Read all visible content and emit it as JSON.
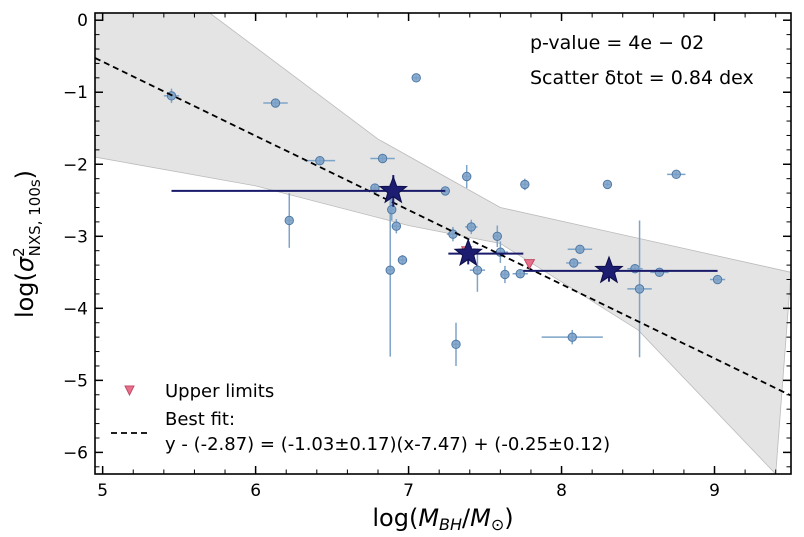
{
  "chart_data": {
    "type": "scatter",
    "xlabel": "log(M_BH/M_⊙)",
    "ylabel": "log(σ²_NXS,100s)",
    "xlim": [
      4.95,
      9.5
    ],
    "ylim": [
      -6.3,
      0.1
    ],
    "xticks": [
      5,
      6,
      7,
      8,
      9
    ],
    "yticks": [
      0,
      -1,
      -2,
      -3,
      -4,
      -5,
      -6
    ],
    "xtick_labels": [
      "5",
      "6",
      "7",
      "8",
      "9"
    ],
    "ytick_labels": [
      "0",
      "−1",
      "−2",
      "−3",
      "−4",
      "−5",
      "−6"
    ],
    "annotations": {
      "pvalue": "p-value = 4e − 02",
      "scatter": "Scatter δtot = 0.84 dex"
    },
    "legend": {
      "upper_limits": "Upper limits",
      "best_fit_title": "Best fit:",
      "best_fit_eq": "y - (-2.87) = (-1.03±0.17)(x-7.47) + (-0.25±0.12)"
    },
    "fit": {
      "x0": 7.47,
      "y0": -2.87,
      "slope": -1.03,
      "intercept": -0.25
    },
    "band": {
      "upper": [
        [
          4.95,
          1.2
        ],
        [
          5.7,
          0.1
        ],
        [
          6.8,
          -1.65
        ],
        [
          7.6,
          -2.6
        ],
        [
          9.5,
          -3.5
        ]
      ],
      "lower": [
        [
          4.95,
          -1.9
        ],
        [
          6.0,
          -2.3
        ],
        [
          7.0,
          -2.85
        ],
        [
          7.6,
          -3.1
        ],
        [
          8.5,
          -4.3
        ],
        [
          9.4,
          -6.3
        ]
      ]
    },
    "points": [
      {
        "x": 5.45,
        "y": -1.05,
        "xerr": 0.05,
        "yerr": 0.1
      },
      {
        "x": 6.13,
        "y": -1.15,
        "xerr": 0.08,
        "yerr": 0.05
      },
      {
        "x": 6.22,
        "y": -2.78,
        "xerr": 0.02,
        "yerr": 0.38
      },
      {
        "x": 6.42,
        "y": -1.95,
        "xerr": 0.1,
        "yerr": 0.05
      },
      {
        "x": 6.78,
        "y": -2.33,
        "xerr": 0.02,
        "yerr": 0.05
      },
      {
        "x": 6.83,
        "y": -1.92,
        "xerr": 0.08,
        "yerr": 0.05
      },
      {
        "x": 6.88,
        "y": -3.47,
        "xerr": 0.02,
        "yerr": 1.2
      },
      {
        "x": 6.89,
        "y": -2.63,
        "xerr": 0.02,
        "yerr": 0.15
      },
      {
        "x": 6.92,
        "y": -2.86,
        "xerr": 0.03,
        "yerr": 0.1
      },
      {
        "x": 6.96,
        "y": -3.33,
        "xerr": 0.03,
        "yerr": 0.07
      },
      {
        "x": 7.05,
        "y": -0.8,
        "xerr": 0.02,
        "yerr": 0.03
      },
      {
        "x": 7.24,
        "y": -2.37,
        "xerr": 0.02,
        "yerr": 0.03
      },
      {
        "x": 7.29,
        "y": -2.97,
        "xerr": 0.04,
        "yerr": 0.1
      },
      {
        "x": 7.31,
        "y": -4.5,
        "xerr": 0.02,
        "yerr": 0.3
      },
      {
        "x": 7.38,
        "y": -2.17,
        "xerr": 0.02,
        "yerr": 0.16
      },
      {
        "x": 7.41,
        "y": -2.87,
        "xerr": 0.04,
        "yerr": 0.1
      },
      {
        "x": 7.45,
        "y": -3.47,
        "xerr": 0.05,
        "yerr": 0.3
      },
      {
        "x": 7.58,
        "y": -3.0,
        "xerr": 0.02,
        "yerr": 0.15
      },
      {
        "x": 7.6,
        "y": -3.22,
        "xerr": 0.05,
        "yerr": 0.15
      },
      {
        "x": 7.63,
        "y": -3.53,
        "xerr": 0.03,
        "yerr": 0.12
      },
      {
        "x": 7.73,
        "y": -3.52,
        "xerr": 0.05,
        "yerr": 0.05
      },
      {
        "x": 7.76,
        "y": -2.28,
        "xerr": 0.02,
        "yerr": 0.08
      },
      {
        "x": 8.07,
        "y": -4.4,
        "xerr": 0.2,
        "yerr": 0.1
      },
      {
        "x": 8.08,
        "y": -3.37,
        "xerr": 0.05,
        "yerr": 0.05
      },
      {
        "x": 8.12,
        "y": -3.18,
        "xerr": 0.08,
        "yerr": 0.05
      },
      {
        "x": 8.3,
        "y": -2.28,
        "xerr": 0.02,
        "yerr": 0.03
      },
      {
        "x": 8.48,
        "y": -3.45,
        "xerr": 0.05,
        "yerr": 0.05
      },
      {
        "x": 8.51,
        "y": -3.73,
        "xerr": 0.08,
        "yerr": 0.95
      },
      {
        "x": 8.64,
        "y": -3.5,
        "xerr": 0.06,
        "yerr": 0.06
      },
      {
        "x": 8.75,
        "y": -2.14,
        "xerr": 0.06,
        "yerr": 0.03
      },
      {
        "x": 9.02,
        "y": -3.6,
        "xerr": 0.05,
        "yerr": 0.03
      }
    ],
    "stars": [
      {
        "x": 6.9,
        "y": -2.37,
        "xlo": 5.45,
        "xhi": 7.24,
        "yerr": 0.22
      },
      {
        "x": 7.39,
        "y": -3.24,
        "xlo": 7.26,
        "xhi": 7.75,
        "yerr": 0.15
      },
      {
        "x": 8.31,
        "y": -3.48,
        "xlo": 7.75,
        "xhi": 9.02,
        "yerr": 0.15
      }
    ],
    "upper_limits": [
      {
        "x": 7.38,
        "y": -3.2
      },
      {
        "x": 7.79,
        "y": -3.38
      }
    ]
  }
}
